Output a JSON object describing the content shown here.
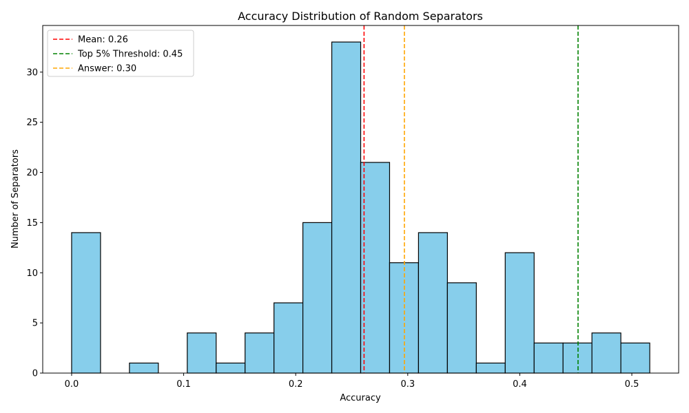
{
  "chart_data": {
    "type": "bar",
    "title": "Accuracy Distribution of Random Separators",
    "xlabel": "Accuracy",
    "ylabel": "Number of Separators",
    "bin_edges": [
      0.0,
      0.0258,
      0.0516,
      0.0774,
      0.1032,
      0.129,
      0.1548,
      0.1806,
      0.2064,
      0.2322,
      0.258,
      0.2838,
      0.3096,
      0.3354,
      0.3612,
      0.387,
      0.4128,
      0.4386,
      0.4644,
      0.4902,
      0.516
    ],
    "values": [
      14,
      0,
      1,
      0,
      4,
      1,
      4,
      7,
      15,
      33,
      21,
      11,
      14,
      9,
      1,
      12,
      3,
      3,
      4,
      3
    ],
    "xlim": [
      -0.0258,
      0.5418
    ],
    "ylim": [
      0,
      34.65
    ],
    "xticks": [
      0.0,
      0.1,
      0.2,
      0.3,
      0.4,
      0.5
    ],
    "xtick_labels": [
      "0.0",
      "0.1",
      "0.2",
      "0.3",
      "0.4",
      "0.5"
    ],
    "yticks": [
      0,
      5,
      10,
      15,
      20,
      25,
      30
    ],
    "ytick_labels": [
      "0",
      "5",
      "10",
      "15",
      "20",
      "25",
      "30"
    ],
    "bar_color": "#87ceeb",
    "bar_edge_color": "#000000",
    "reference_lines": [
      {
        "label": "Mean: 0.26",
        "x": 0.261,
        "color": "#ff0000"
      },
      {
        "label": "Top 5% Threshold: 0.45",
        "x": 0.452,
        "color": "#008000"
      },
      {
        "label": "Answer: 0.30",
        "x": 0.297,
        "color": "#ffa500"
      }
    ],
    "legend_position": "top-left",
    "grid": false
  }
}
